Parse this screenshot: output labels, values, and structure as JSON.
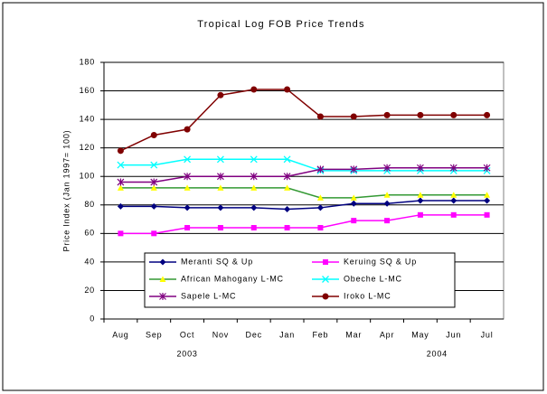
{
  "chart_data": {
    "type": "line",
    "title": "Tropical Log FOB Price Trends",
    "y_label": "Price Index (Jan 1997= 100)",
    "categories": [
      "Aug",
      "Sep",
      "Oct",
      "Nov",
      "Dec",
      "Jan",
      "Feb",
      "Mar",
      "Apr",
      "May",
      "Jun",
      "Jul"
    ],
    "year_labels": [
      "2003",
      "2004"
    ],
    "ylim": [
      0,
      180
    ],
    "yticks": [
      0,
      20,
      40,
      60,
      80,
      100,
      120,
      140,
      160,
      180
    ],
    "grid": true,
    "series": [
      {
        "name": "Meranti SQ & Up",
        "color": "#000080",
        "marker": "diamond",
        "marker_color": "#000080",
        "values": [
          79,
          79,
          78,
          78,
          78,
          77,
          78,
          81,
          81,
          83,
          83,
          83
        ]
      },
      {
        "name": "Keruing SQ & Up",
        "color": "#ff00ff",
        "marker": "square",
        "marker_color": "#ff00ff",
        "values": [
          60,
          60,
          64,
          64,
          64,
          64,
          64,
          69,
          69,
          73,
          73,
          73
        ]
      },
      {
        "name": "African Mahogany L-MC",
        "color": "#339933",
        "marker": "triangle",
        "marker_color": "#ffff00",
        "values": [
          92,
          92,
          92,
          92,
          92,
          92,
          85,
          85,
          87,
          87,
          87,
          87
        ]
      },
      {
        "name": "Obeche L-MC",
        "color": "#00ffff",
        "marker": "x",
        "marker_color": "#00ffff",
        "values": [
          108,
          108,
          112,
          112,
          112,
          112,
          104,
          104,
          104,
          104,
          104,
          104
        ]
      },
      {
        "name": "Sapele L-MC",
        "color": "#800080",
        "marker": "star",
        "marker_color": "#800080",
        "values": [
          96,
          96,
          100,
          100,
          100,
          100,
          105,
          105,
          106,
          106,
          106,
          106
        ]
      },
      {
        "name": "Iroko L-MC",
        "color": "#800000",
        "marker": "circle",
        "marker_color": "#800000",
        "values": [
          118,
          129,
          133,
          157,
          161,
          161,
          142,
          142,
          143,
          143,
          143,
          143
        ]
      }
    ]
  }
}
